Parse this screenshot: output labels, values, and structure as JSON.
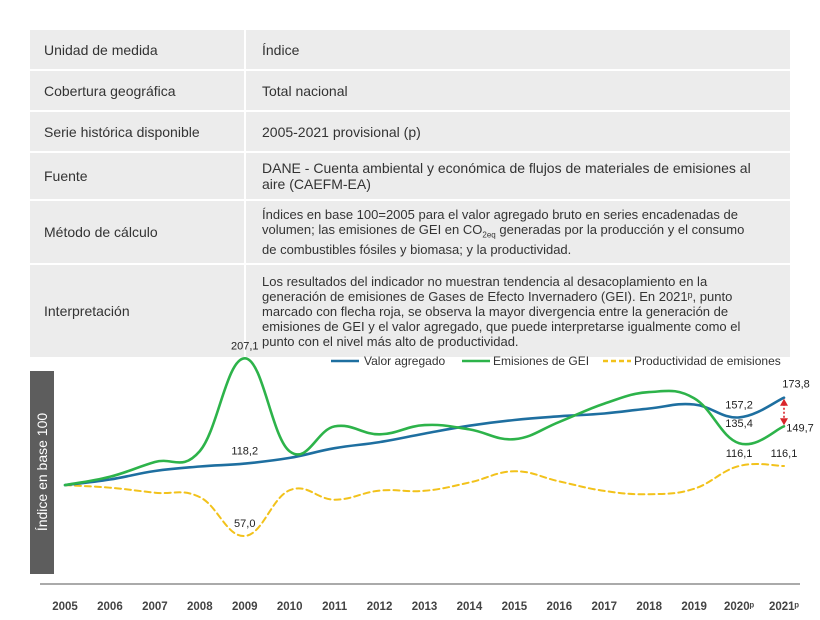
{
  "table": {
    "rows": [
      {
        "key": "Unidad de medida",
        "value": "Índice"
      },
      {
        "key": "Cobertura geográfica",
        "value": "Total nacional"
      },
      {
        "key": "Serie histórica disponible",
        "value": "2005-2021 provisional (p)"
      },
      {
        "key": "Fuente",
        "value": "DANE - Cuenta ambiental y económica de flujos de materiales de emisiones al aire (CAEFM-EA)"
      },
      {
        "key": "Método de cálculo",
        "value_pre": "Índices en base 100=2005 para el valor agregado bruto en series encadenadas de volumen; las emisiones de GEI en CO",
        "value_sub": "2eq",
        "value_post": " generadas por la producción y el consumo de combustibles fósiles y biomasa; y la productividad."
      },
      {
        "key": "Interpretación",
        "value": "Los resultados del indicador no muestran tendencia al desacoplamiento en la generación de emisiones de Gases de Efecto Invernadero (GEI). En 2021ᵖ, punto marcado con flecha roja, se observa la mayor divergencia entre la generación de emisiones de GEI y el valor agregado, que puede interpretarse igualmente como el punto con el nivel más alto de productividad."
      }
    ]
  },
  "chart_data": {
    "type": "line",
    "ylabel": "Índice en base 100",
    "ylim": [
      30,
      220
    ],
    "categories": [
      "2005",
      "2006",
      "2007",
      "2008",
      "2009",
      "2010",
      "2011",
      "2012",
      "2013",
      "2014",
      "2015",
      "2016",
      "2017",
      "2018",
      "2019",
      "2020ᵖ",
      "2021ᵖ"
    ],
    "legend_position": "top-right",
    "series": [
      {
        "name": "Valor agregado",
        "color": "#1e6fa0",
        "dash": false,
        "values": [
          100,
          104.7,
          111.9,
          115.7,
          118.2,
          123.0,
          131.2,
          136.3,
          143.5,
          150.2,
          155.0,
          158.1,
          160.5,
          164.7,
          168.1,
          157.2,
          173.8
        ]
      },
      {
        "name": "Emisiones de GEI",
        "color": "#2db34a",
        "dash": false,
        "values": [
          100,
          107.0,
          119.5,
          128.7,
          207.1,
          128.5,
          149.6,
          142.9,
          150.7,
          147.0,
          138.8,
          153.4,
          168.8,
          178.5,
          173.4,
          135.4,
          149.7
        ]
      },
      {
        "name": "Productividad de emisiones",
        "color": "#f2c21b",
        "dash": true,
        "values": [
          100,
          97.8,
          93.6,
          89.9,
          57.0,
          95.7,
          87.7,
          95.4,
          95.2,
          102.2,
          111.7,
          103.1,
          95.1,
          92.3,
          96.9,
          116.1,
          116.1
        ]
      }
    ],
    "data_labels": [
      {
        "series": 1,
        "index": 4,
        "text": "207,1",
        "pos": "above"
      },
      {
        "series": 0,
        "index": 4,
        "text": "118,2",
        "pos": "above"
      },
      {
        "series": 2,
        "index": 4,
        "text": "57,0",
        "pos": "above"
      },
      {
        "series": 0,
        "index": 15,
        "text": "157,2",
        "pos": "above"
      },
      {
        "series": 1,
        "index": 15,
        "text": "135,4",
        "pos": "above"
      },
      {
        "series": 2,
        "index": 15,
        "text": "116,1",
        "pos": "above"
      },
      {
        "series": 0,
        "index": 16,
        "text": "173,8",
        "pos": "above-right"
      },
      {
        "series": 1,
        "index": 16,
        "text": "149,7",
        "pos": "right"
      },
      {
        "series": 2,
        "index": 16,
        "text": "116,1",
        "pos": "above"
      }
    ],
    "divergence_arrow": {
      "index": 16,
      "from_series": 1,
      "to_series": 0,
      "color": "#d9262b"
    }
  }
}
